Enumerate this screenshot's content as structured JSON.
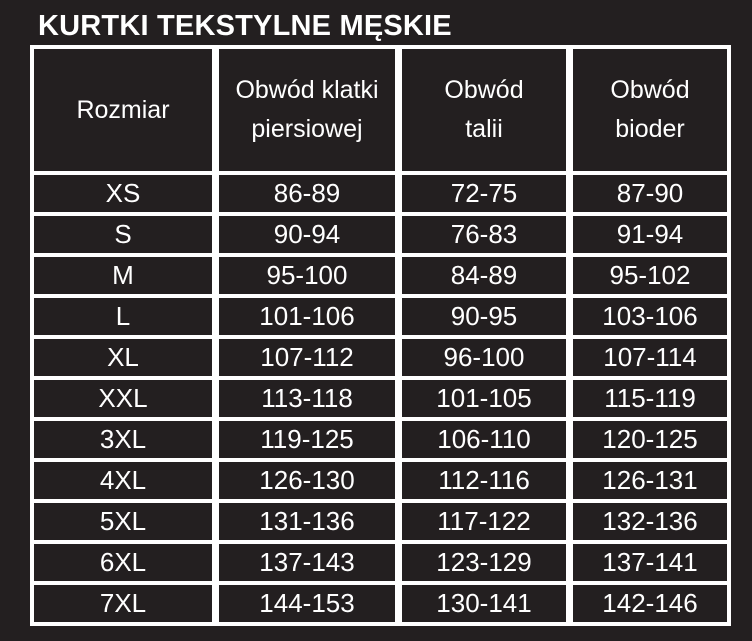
{
  "title": "KURTKI TEKSTYLNE MĘSKIE",
  "colors": {
    "background": "#231f20",
    "text": "#ffffff",
    "grid": "#ffffff"
  },
  "table": {
    "headers": [
      {
        "lines": [
          "Rozmiar"
        ]
      },
      {
        "lines": [
          "Obwód klatki",
          "piersiowej"
        ]
      },
      {
        "lines": [
          "Obwód",
          "talii"
        ]
      },
      {
        "lines": [
          "Obwód",
          "bioder"
        ]
      }
    ],
    "rows": [
      {
        "size": "XS",
        "chest": "86-89",
        "waist": "72-75",
        "hips": "87-90"
      },
      {
        "size": "S",
        "chest": "90-94",
        "waist": "76-83",
        "hips": "91-94"
      },
      {
        "size": "M",
        "chest": "95-100",
        "waist": "84-89",
        "hips": "95-102"
      },
      {
        "size": "L",
        "chest": "101-106",
        "waist": "90-95",
        "hips": "103-106"
      },
      {
        "size": "XL",
        "chest": "107-112",
        "waist": "96-100",
        "hips": "107-114"
      },
      {
        "size": "XXL",
        "chest": "113-118",
        "waist": "101-105",
        "hips": "115-119"
      },
      {
        "size": "3XL",
        "chest": "119-125",
        "waist": "106-110",
        "hips": "120-125"
      },
      {
        "size": "4XL",
        "chest": "126-130",
        "waist": "112-116",
        "hips": "126-131"
      },
      {
        "size": "5XL",
        "chest": "131-136",
        "waist": "117-122",
        "hips": "132-136"
      },
      {
        "size": "6XL",
        "chest": "137-143",
        "waist": "123-129",
        "hips": "137-141"
      },
      {
        "size": "7XL",
        "chest": "144-153",
        "waist": "130-141",
        "hips": "142-146"
      }
    ]
  }
}
